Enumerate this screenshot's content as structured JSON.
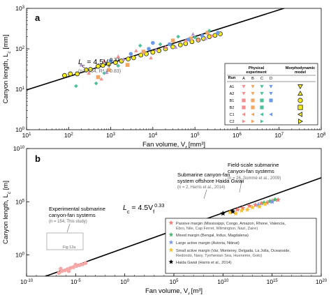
{
  "chart_data": [
    {
      "panel": "a",
      "type": "scatter",
      "xlabel": "Fan volume, V",
      "xlabel_sub": "f",
      "xlabel_unit": " [mm³]",
      "ylabel": "Canyon length, L",
      "ylabel_sub": "c",
      "ylabel_unit": " [mm]",
      "x_scale": "log",
      "y_scale": "log",
      "xlim": [
        10,
        100000000.0
      ],
      "ylim": [
        1,
        1000
      ],
      "x_ticks": [
        10,
        100,
        1000,
        10000,
        100000,
        1000000,
        10000000,
        100000000
      ],
      "x_tick_labels": [
        [
          "10",
          "1"
        ],
        [
          "10",
          "2"
        ],
        [
          "10",
          "3"
        ],
        [
          "10",
          "4"
        ],
        [
          "10",
          "5"
        ],
        [
          "10",
          "6"
        ],
        [
          "10",
          "7"
        ],
        [
          "10",
          "8"
        ]
      ],
      "y_ticks": [
        1,
        10,
        100,
        1000
      ],
      "y_tick_labels": [
        [
          "10",
          "0"
        ],
        [
          "10",
          "1"
        ],
        [
          "10",
          "2"
        ],
        [
          "10",
          "3"
        ]
      ],
      "fit": {
        "a": 4.5,
        "b": 0.33,
        "x_range": [
          10,
          100000000.0
        ]
      },
      "equation": {
        "lead": "L",
        "lead_sub": "c",
        "mid": " = 4.5V",
        "mid_sub": "f",
        "exp": "0.33"
      },
      "stats": "(n = 154, R² = 0.83)",
      "series": [
        {
          "name": "Morphodynamic model",
          "color": "#f2ea1c",
          "marker": "circle",
          "points": [
            [
              80,
              22
            ],
            [
              110,
              24
            ],
            [
              160,
              24
            ],
            [
              260,
              30
            ],
            [
              330,
              31
            ],
            [
              500,
              37
            ],
            [
              650,
              39
            ],
            [
              900,
              42
            ],
            [
              1300,
              46
            ],
            [
              1800,
              50
            ],
            [
              2600,
              56
            ],
            [
              3500,
              60
            ],
            [
              5200,
              70
            ],
            [
              7000,
              75
            ],
            [
              10000,
              82
            ],
            [
              14000,
              90
            ],
            [
              20000,
              100
            ],
            [
              30000,
              112
            ],
            [
              45000,
              125
            ],
            [
              60000,
              135
            ],
            [
              85000,
              150
            ],
            [
              120000,
              165
            ],
            [
              160000,
              180
            ],
            [
              220000,
              200
            ],
            [
              300000,
              215
            ],
            [
              400000,
              235
            ]
          ]
        },
        {
          "name": "Run A",
          "color": "#f58f8f",
          "marker": "triangle",
          "points": [
            [
              300,
              25
            ],
            [
              700,
              50
            ],
            [
              1500,
              65
            ],
            [
              4000,
              90
            ],
            [
              20000,
              110
            ],
            [
              60000,
              160
            ],
            [
              120000,
              170
            ],
            [
              250000,
              210
            ],
            [
              600,
              18
            ],
            [
              9000,
              60
            ]
          ]
        },
        {
          "name": "Run B",
          "color": "#f2a663",
          "marker": "square",
          "points": [
            [
              500,
              20
            ],
            [
              2500,
              40
            ],
            [
              6000,
              85
            ],
            [
              30000,
              160
            ],
            [
              80000,
              180
            ],
            [
              200000,
              250
            ],
            [
              900,
              30
            ]
          ]
        },
        {
          "name": "Run C",
          "color": "#4ec09a",
          "marker": "diamond",
          "points": [
            [
              150,
              12
            ],
            [
              450,
              14
            ],
            [
              1500,
              38
            ],
            [
              5000,
              120
            ],
            [
              15000,
              130
            ],
            [
              40000,
              200
            ],
            [
              100000,
              190
            ],
            [
              220000,
              280
            ],
            [
              700,
              25
            ]
          ]
        },
        {
          "name": "Run D",
          "color": "#6b9be8",
          "marker": "circle",
          "points": [
            [
              1000,
              50
            ],
            [
              3000,
              75
            ],
            [
              10000,
              140
            ],
            [
              25000,
              130
            ],
            [
              70000,
              170
            ],
            [
              150000,
              210
            ],
            [
              350000,
              250
            ],
            [
              8000,
              100
            ]
          ]
        },
        {
          "name": "Run E",
          "color": "#b591d6",
          "marker": "triangle",
          "points": [
            [
              200,
              40
            ],
            [
              800,
              26
            ],
            [
              2000,
              55
            ],
            [
              12000,
              95
            ],
            [
              35000,
              110
            ],
            [
              90000,
              230
            ],
            [
              180000,
              180
            ]
          ]
        }
      ],
      "legend": {
        "position": "lower-right",
        "col_headers": {
          "run": "Run",
          "physical": "Physical experiment",
          "model": "Morphodynamic model",
          "sub": [
            "A",
            "B",
            "C",
            "D"
          ]
        },
        "rows": [
          {
            "label": "A1",
            "colors": [
              "#f58f8f",
              "#f2a663",
              "#4ec09a",
              "#6b9be8"
            ],
            "marker": "tri-down",
            "model": "tri-down"
          },
          {
            "label": "A2",
            "colors": [
              "#f58f8f",
              "#f2a663",
              "#4ec09a",
              "#6b9be8"
            ],
            "marker": "tri-down",
            "model": "tri-up"
          },
          {
            "label": "B1",
            "colors": [
              "#f58f8f",
              "#f2a663",
              "#4ec09a",
              "#6b9be8"
            ],
            "marker": "square",
            "model": "circle"
          },
          {
            "label": "B2",
            "colors": [
              "#f58f8f",
              "#f2a663",
              "#4ec09a",
              "#6b9be8"
            ],
            "marker": "square",
            "model": "square"
          },
          {
            "label": "C1",
            "colors": [
              "#f58f8f",
              "#f2a663",
              "#4ec09a",
              "#6b9be8"
            ],
            "marker": "tri-left",
            "model": "tri-left"
          },
          {
            "label": "C2",
            "colors": [
              "#f58f8f",
              "#f2a663",
              "#4ec09a",
              "#6b9be8"
            ],
            "marker": "tri-right",
            "model": "tri-right"
          }
        ]
      }
    },
    {
      "panel": "b",
      "type": "scatter",
      "xlabel": "Fan volume, V",
      "xlabel_sub": "f",
      "xlabel_unit": " [m³]",
      "ylabel": "Canyon length, L",
      "ylabel_sub": "c",
      "ylabel_unit": " [m]",
      "x_scale": "log",
      "y_scale": "log",
      "xlim": [
        1e-10,
        1e+20
      ],
      "ylim": [
        0.01,
        10000000000.0
      ],
      "x_ticks": [
        1e-10,
        1e-05,
        1,
        100000.0,
        10000000000.0,
        1000000000000000.0,
        1e+20
      ],
      "x_tick_labels": [
        [
          "10",
          "-10"
        ],
        [
          "10",
          "-5"
        ],
        [
          "10",
          "0"
        ],
        [
          "10",
          "5"
        ],
        [
          "10",
          "10"
        ],
        [
          "10",
          "15"
        ],
        [
          "10",
          "20"
        ]
      ],
      "y_ticks": [
        1,
        100000,
        10000000000.0
      ],
      "y_tick_labels": [
        [
          "10",
          "0"
        ],
        [
          "10",
          "5"
        ],
        [
          "10",
          "10"
        ]
      ],
      "fit": {
        "a": 4.5,
        "b": 0.33,
        "x_range": [
          1e-10,
          1e+20
        ]
      },
      "equation": {
        "lead": "L",
        "lead_sub": "c",
        "mid": " = 4.5V",
        "mid_sub": "f",
        "exp": "0.33"
      },
      "series": [
        {
          "name": "Experimental",
          "color": "#f4a8a8",
          "marker": "circle",
          "points": [
            [
              2e-07,
              0.02
            ],
            [
              4e-07,
              0.03
            ],
            [
              8e-07,
              0.035
            ],
            [
              1.5e-06,
              0.045
            ],
            [
              3e-06,
              0.06
            ],
            [
              6e-06,
              0.07
            ],
            [
              1.2e-05,
              0.09
            ],
            [
              2.5e-05,
              0.11
            ],
            [
              5e-05,
              0.13
            ],
            [
              0.0001,
              0.17
            ],
            [
              3e-07,
              0.05
            ],
            [
              2e-06,
              0.03
            ],
            [
              1e-05,
              0.12
            ]
          ]
        },
        {
          "name": "Passive margin",
          "color": "#f37b74",
          "marker": "star",
          "points": [
            [
              300000000000.0,
              18000
            ],
            [
              1000000000000.0,
              25000
            ],
            [
              5000000000000.0,
              40000
            ],
            [
              20000000000000.0,
              50000
            ],
            [
              80000000000000.0,
              70000
            ],
            [
              300000000000000.0,
              80000
            ],
            [
              1000000000000000.0,
              120000
            ],
            [
              4000000000000000.0,
              150000
            ]
          ]
        },
        {
          "name": "Mixed margin",
          "color": "#4cb86e",
          "marker": "star",
          "points": [
            [
              150000000000000.0,
              80000
            ],
            [
              600000000000000.0,
              110000
            ],
            [
              2000000000000000.0,
              160000
            ]
          ]
        },
        {
          "name": "Large active margin",
          "color": "#7a9be0",
          "marker": "star",
          "points": [
            [
              40000000000000.0,
              50000
            ],
            [
              1000000000000000.0,
              100000
            ]
          ]
        },
        {
          "name": "Small active margin",
          "color": "#f2c231",
          "marker": "star",
          "points": [
            [
              50000000000.0,
              10000
            ],
            [
              200000000000.0,
              8000
            ],
            [
              800000000000.0,
              15000
            ],
            [
              3000000000000.0,
              18000
            ],
            [
              10000000000000.0,
              30000
            ],
            [
              50000000000000.0,
              35000
            ],
            [
              200000000000000.0,
              60000
            ]
          ]
        },
        {
          "name": "Haida Gwaii",
          "color": "#000000",
          "marker": "star",
          "points": [
            [
              10000000000.0,
              8000
            ],
            [
              100000000000.0,
              12000
            ]
          ]
        }
      ],
      "annotations": [
        {
          "id": "field",
          "lines": [
            "Field-scale submarine",
            "canyon-fan systems"
          ],
          "note": "(n = 26, Sommé et al., 2009)"
        },
        {
          "id": "haida",
          "lines": [
            "Submarine canyon-fan",
            "system offshore Haida Gwaii"
          ],
          "note": "(n = 2, Harris et al., 2014)"
        },
        {
          "id": "experimental",
          "lines": [
            "Experimental submarine",
            "canyon-fan systems"
          ],
          "note": "(n = 154, This study)"
        },
        {
          "id": "fig-ref",
          "lines": [
            "Fig 12a"
          ],
          "note": ""
        }
      ],
      "legend": {
        "position": "lower-right",
        "items": [
          {
            "name": "Passive margin",
            "detail": "(Mississippi, Congo, Amazon, Rhone, Valencia,",
            "detail2": "Ebro, Nile, Cap Ferret, Wilmington, Nazi, Zaire)",
            "color": "#f37b74"
          },
          {
            "name": "Mixed margin",
            "detail": "(Bengal, Indus, Magdalena)",
            "detail2": "",
            "color": "#4cb86e"
          },
          {
            "name": "Large active margin",
            "detail": "(Astoria, Nitinat)",
            "detail2": "",
            "color": "#7a9be0"
          },
          {
            "name": "Small active margin",
            "detail": "(Var, Monterey, Delgada, La Jolla, Oceanside,",
            "detail2": "Redondo, Navy, Tyrrhenian Sea, Hueneme, Golo)",
            "color": "#f2c231"
          },
          {
            "name": "Haida Gwaii",
            "detail": "(Harris et al., 2014)",
            "detail2": "",
            "color": "#000000"
          }
        ]
      }
    }
  ]
}
